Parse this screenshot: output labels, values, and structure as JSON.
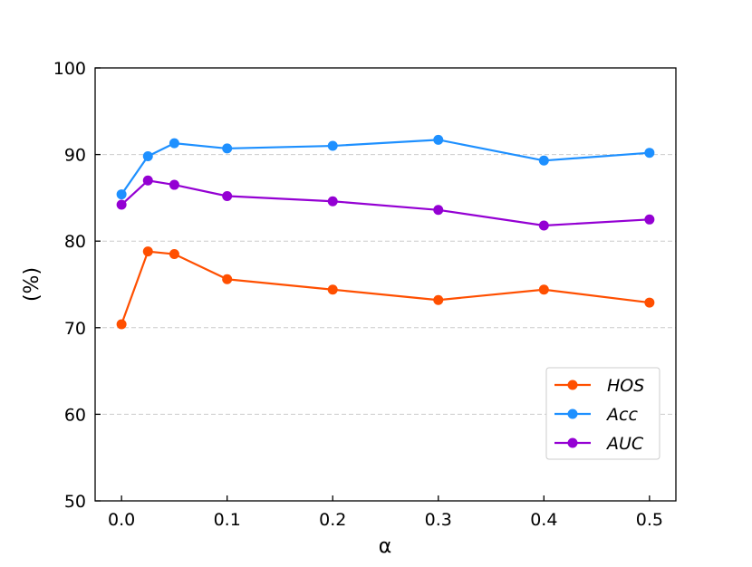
{
  "chart_data": {
    "type": "line",
    "xlabel": "α",
    "ylabel": "(%)",
    "xlim": [
      -0.025,
      0.525
    ],
    "ylim": [
      50,
      100
    ],
    "xticks": [
      "0.0",
      "0.1",
      "0.2",
      "0.3",
      "0.4",
      "0.5"
    ],
    "xtick_values": [
      0,
      0.1,
      0.2,
      0.3,
      0.4,
      0.5
    ],
    "yticks": [
      "50",
      "60",
      "70",
      "80",
      "90",
      "100"
    ],
    "ytick_values": [
      50,
      60,
      70,
      80,
      90,
      100
    ],
    "grid": "horizontal dashed",
    "legend_position": "lower-right",
    "x": [
      0,
      0.025,
      0.05,
      0.1,
      0.2,
      0.3,
      0.4,
      0.5
    ],
    "series": [
      {
        "name": "HOS",
        "color": "#ff4f00",
        "values": [
          70.4,
          78.8,
          78.5,
          75.6,
          74.4,
          73.2,
          74.4,
          72.9
        ]
      },
      {
        "name": "Acc",
        "color": "#1e90ff",
        "values": [
          85.4,
          89.8,
          91.3,
          90.7,
          91.0,
          91.7,
          89.3,
          90.2
        ]
      },
      {
        "name": "AUC",
        "color": "#9400d3",
        "values": [
          84.2,
          87.0,
          86.5,
          85.2,
          84.6,
          83.6,
          81.8,
          82.5
        ]
      }
    ]
  }
}
